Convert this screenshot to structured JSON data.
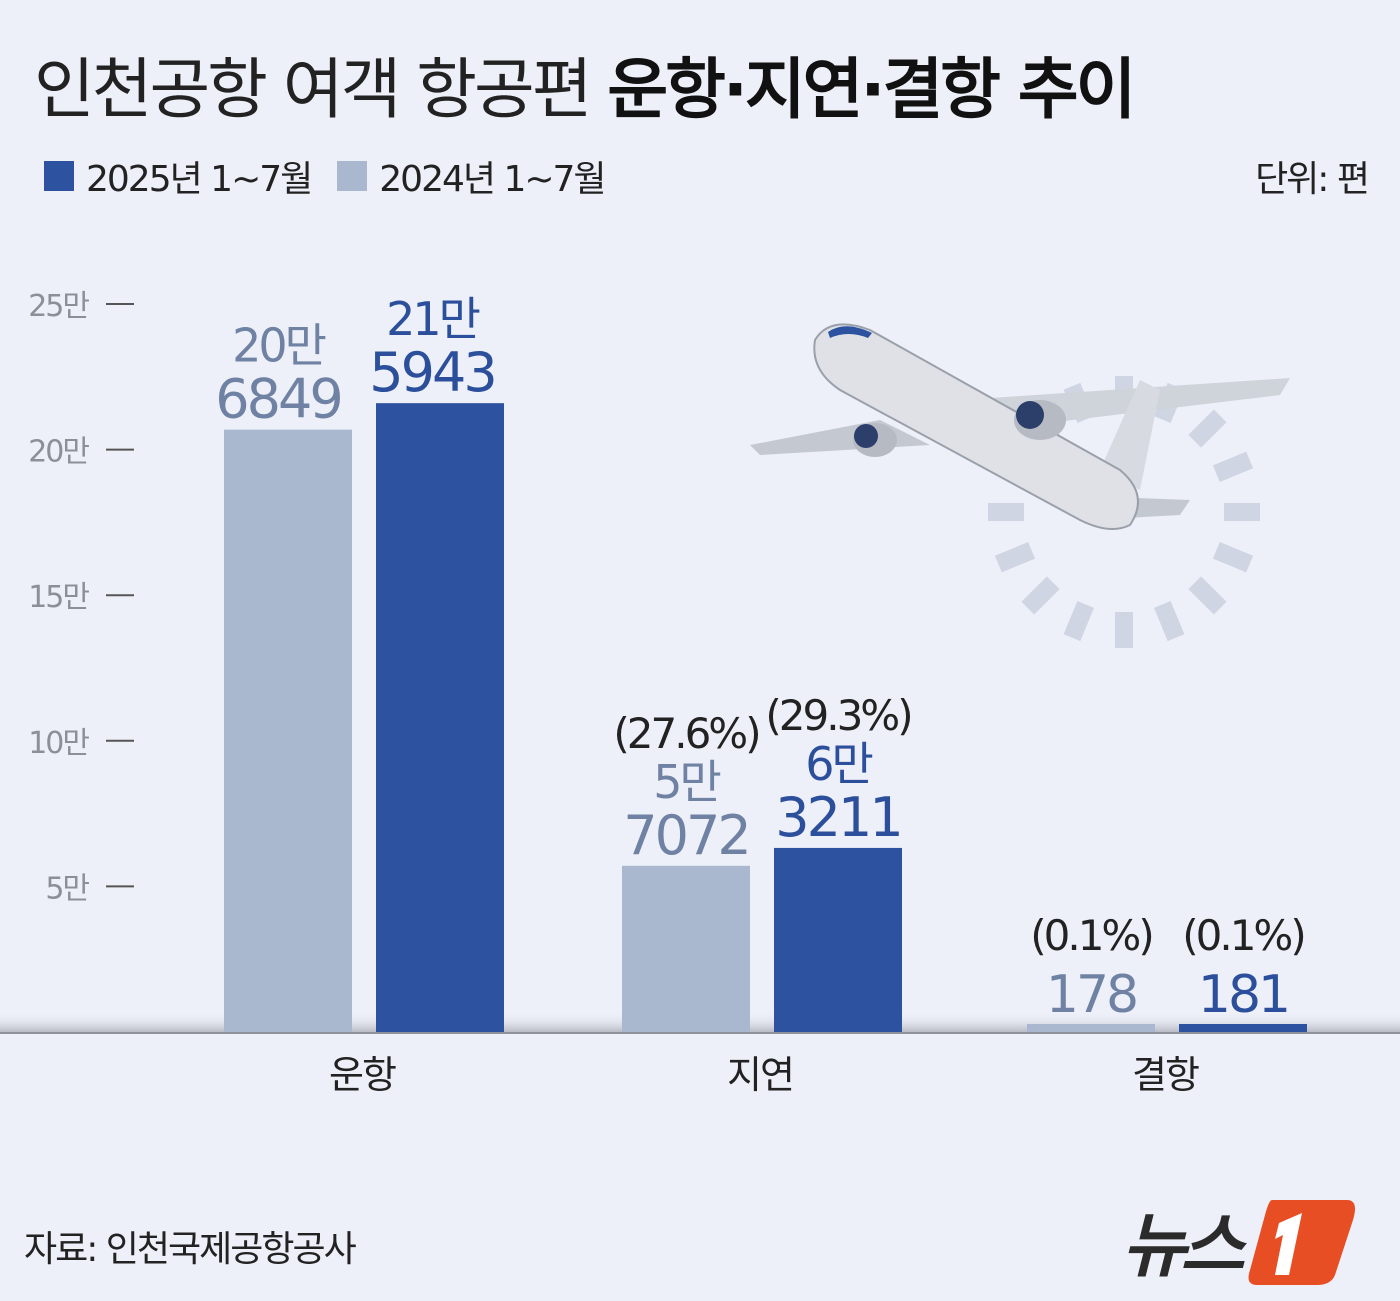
{
  "title": {
    "normal": "인천공항 여객 항공편 ",
    "bold": "운항·지연·결항 추이"
  },
  "legend": [
    {
      "label": "2025년 1~7월",
      "color": "#2c52a0"
    },
    {
      "label": "2024년 1~7월",
      "color": "#a9b8cf"
    }
  ],
  "unit": "단위: 편",
  "source": "자료: 인천국제공항공사",
  "logo": {
    "text": "뉴스",
    "mark": "1",
    "mark_color": "#e84e23"
  },
  "chart_data": {
    "type": "bar",
    "categories": [
      "운항",
      "지연",
      "결항"
    ],
    "series": [
      {
        "name": "2024년 1~7월",
        "color": "#a9b8cf",
        "label_color": "#6f82a3",
        "values": [
          206849,
          57072,
          178
        ],
        "labels": [
          [
            "20만",
            "6849"
          ],
          [
            "5만",
            "7072"
          ],
          [
            "",
            "178"
          ]
        ],
        "shares": [
          "",
          "(27.6%)",
          "(0.1%)"
        ]
      },
      {
        "name": "2025년 1~7월",
        "color": "#2c52a0",
        "label_color": "#2c4f9c",
        "values": [
          215943,
          63211,
          181
        ],
        "labels": [
          [
            "21만",
            "5943"
          ],
          [
            "6만",
            "3211"
          ],
          [
            "",
            "181"
          ]
        ],
        "shares": [
          "",
          "(29.3%)",
          "(0.1%)"
        ]
      }
    ],
    "yticks": [
      {
        "value": 50000,
        "label": "5만"
      },
      {
        "value": 100000,
        "label": "10만"
      },
      {
        "value": 150000,
        "label": "15만"
      },
      {
        "value": 200000,
        "label": "20만"
      },
      {
        "value": 250000,
        "label": "25만"
      }
    ],
    "ylim": [
      0,
      250000
    ],
    "grid": false
  }
}
